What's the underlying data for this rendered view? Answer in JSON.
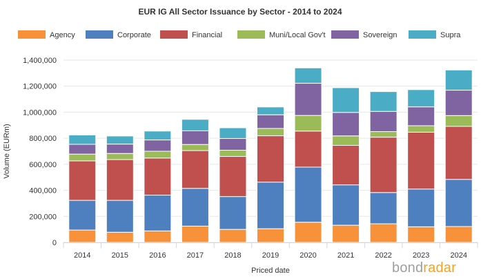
{
  "chart_data": {
    "type": "bar",
    "stacked": true,
    "title": "EUR IG All Sector Issuance by Sector - 2014 to 2024",
    "xlabel": "Priced date",
    "ylabel": "Volume (EURm)",
    "ylim": [
      0,
      1400000
    ],
    "yticks": [
      "0",
      "200,000",
      "400,000",
      "600,000",
      "800,000",
      "1,000,000",
      "1,200,000",
      "1,400,000"
    ],
    "ytick_values": [
      0,
      200000,
      400000,
      600000,
      800000,
      1000000,
      1200000,
      1400000
    ],
    "grid": true,
    "legend_position": "top",
    "categories": [
      "2014",
      "2015",
      "2016",
      "2017",
      "2018",
      "2019",
      "2020",
      "2021",
      "2022",
      "2023",
      "2024"
    ],
    "series": [
      {
        "name": "Agency",
        "color": "#f7923a",
        "values": [
          95000,
          78000,
          88000,
          125000,
          100000,
          105000,
          155000,
          132000,
          143000,
          120000,
          122000
        ]
      },
      {
        "name": "Corporate",
        "color": "#4e7fbf",
        "values": [
          228000,
          245000,
          275000,
          290000,
          252000,
          358000,
          423000,
          310000,
          240000,
          290000,
          362000
        ]
      },
      {
        "name": "Financial",
        "color": "#c0504d",
        "values": [
          303000,
          313000,
          285000,
          290000,
          308000,
          356000,
          277000,
          303000,
          425000,
          436000,
          407000
        ]
      },
      {
        "name": "Muni/Local Gov't",
        "color": "#9bbb59",
        "values": [
          52000,
          47000,
          52000,
          47000,
          48000,
          56000,
          120000,
          73000,
          43000,
          50000,
          83000
        ]
      },
      {
        "name": "Sovereign",
        "color": "#8064a2",
        "values": [
          75000,
          72000,
          87000,
          105000,
          90000,
          105000,
          247000,
          180000,
          155000,
          145000,
          195000
        ]
      },
      {
        "name": "Supra",
        "color": "#4bacc6",
        "values": [
          72000,
          62000,
          68000,
          88000,
          82000,
          60000,
          118000,
          190000,
          152000,
          132000,
          155000
        ]
      }
    ]
  },
  "brand": {
    "part1": "bond",
    "part2": "radar"
  }
}
